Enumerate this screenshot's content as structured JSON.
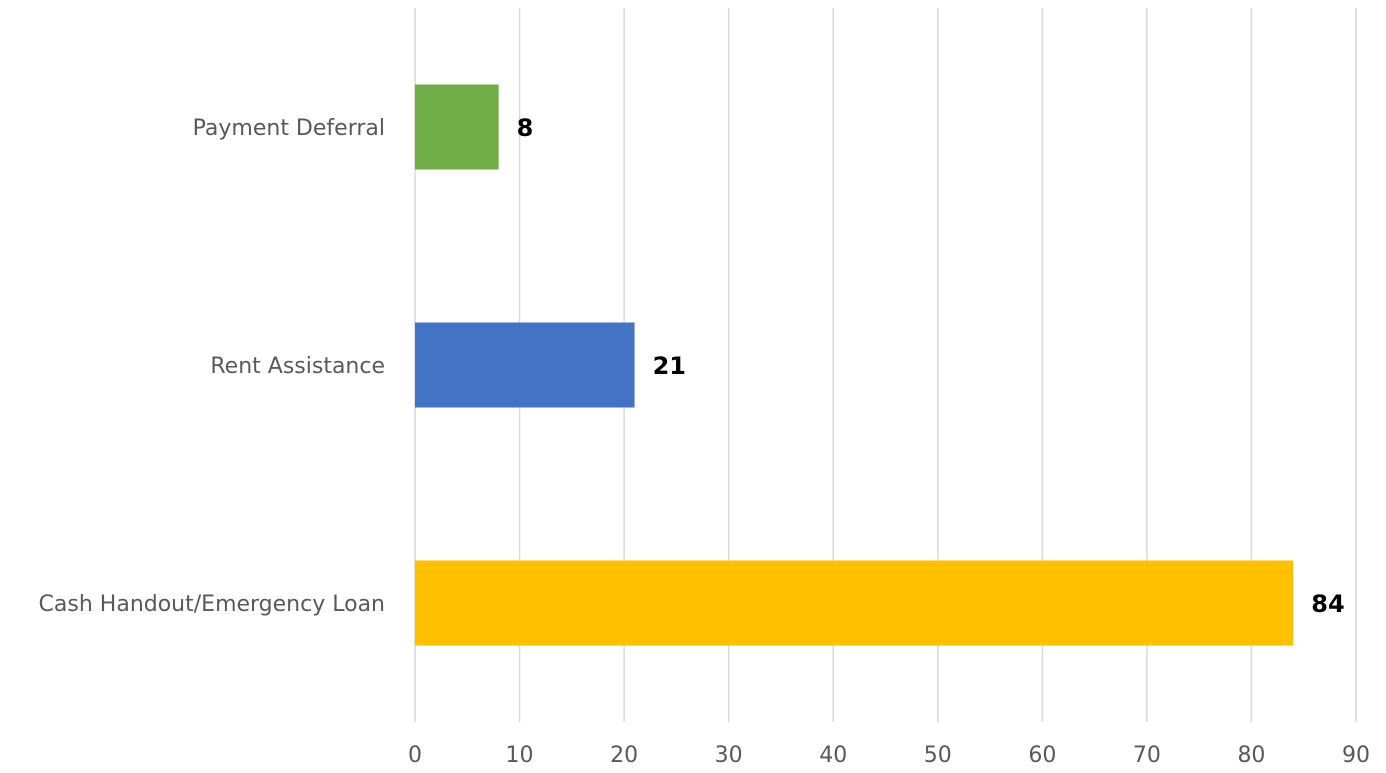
{
  "chart_data": {
    "type": "bar",
    "orientation": "horizontal",
    "categories": [
      "Payment Deferral",
      "Rent Assistance",
      "Cash Handout/Emergency Loan"
    ],
    "values": [
      8,
      21,
      84
    ],
    "colors": [
      "#70ad47",
      "#4472c4",
      "#ffc000"
    ],
    "data_labels": [
      "8",
      "21",
      "84"
    ],
    "xlim": [
      0,
      90
    ],
    "xticks": [
      0,
      10,
      20,
      30,
      40,
      50,
      60,
      70,
      80,
      90
    ],
    "xtick_labels": [
      "0",
      "10",
      "20",
      "30",
      "40",
      "50",
      "60",
      "70",
      "80",
      "90"
    ],
    "title": "",
    "xlabel": "",
    "ylabel": "",
    "grid": "vertical",
    "legend": "none"
  }
}
